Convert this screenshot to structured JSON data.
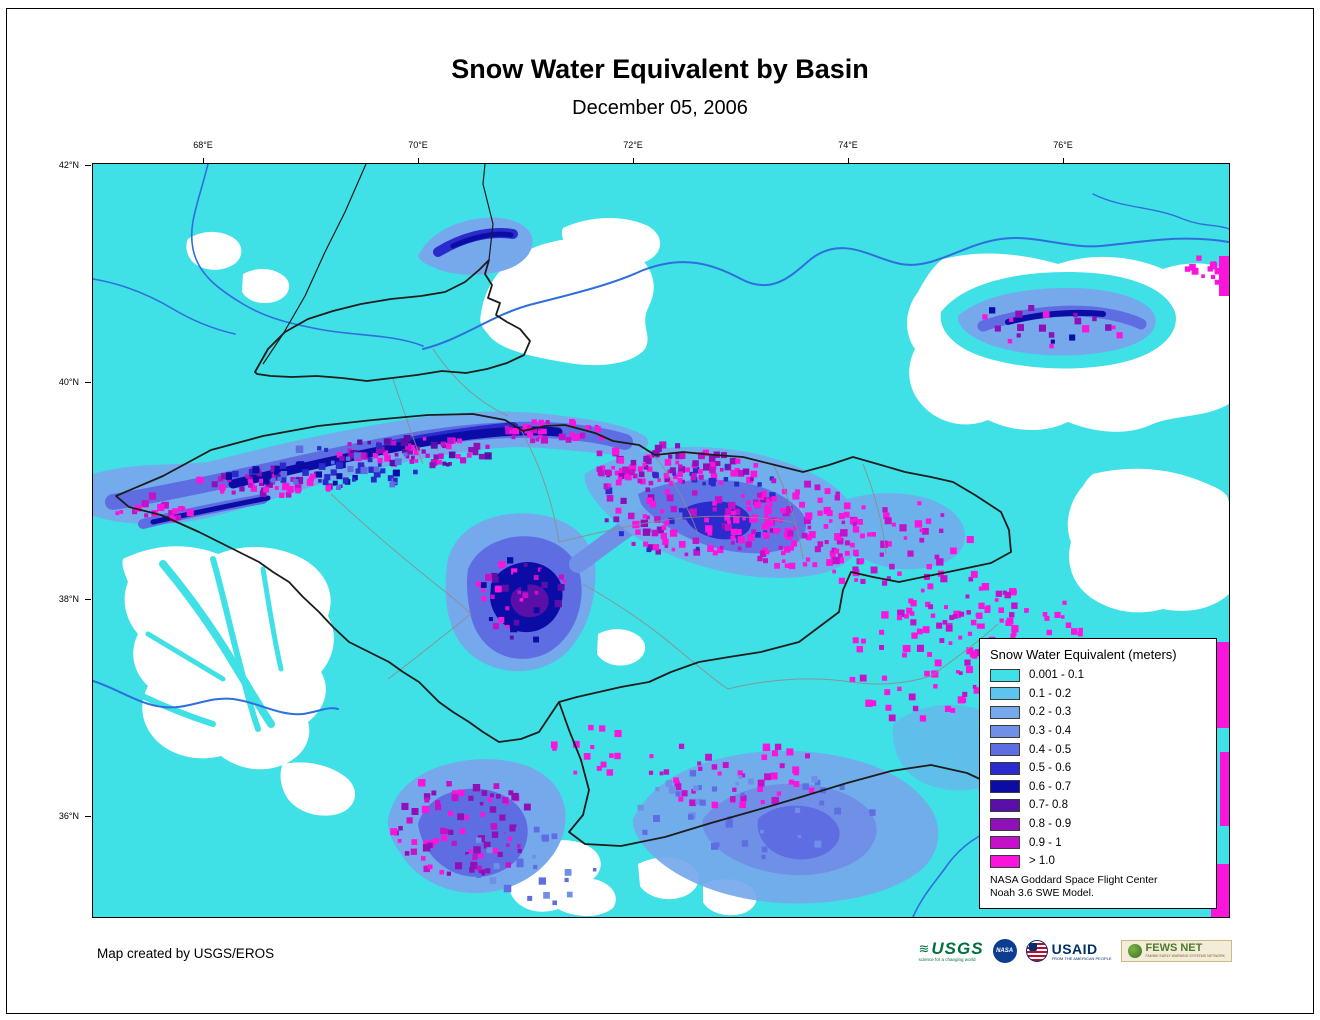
{
  "title": "Snow Water Equivalent by Basin",
  "subtitle": "December 05, 2006",
  "map": {
    "lon_labels": [
      "68°E",
      "70°E",
      "72°E",
      "74°E",
      "76°E"
    ],
    "lat_labels": [
      "42°N",
      "40°N",
      "38°N",
      "36°N"
    ],
    "background_color": "#3FE0E6",
    "nodata_color": "#FFFFFF",
    "river_color": "#2F6FDB",
    "basin_outline_color": "#1c1c1c",
    "subbasin_outline_color": "#8c8c8c"
  },
  "legend": {
    "title": "Snow Water Equivalent (meters)",
    "entries": [
      {
        "label": "0.001 - 0.1",
        "color": "#3FE0E6"
      },
      {
        "label": "0.1 - 0.2",
        "color": "#5CC4EE"
      },
      {
        "label": "0.2 - 0.3",
        "color": "#76A8EC"
      },
      {
        "label": "0.3 - 0.4",
        "color": "#7090E8"
      },
      {
        "label": "0.4 - 0.5",
        "color": "#5E6EE2"
      },
      {
        "label": "0.5 - 0.6",
        "color": "#2A2ACD"
      },
      {
        "label": "0.6 - 0.7",
        "color": "#0B0BA6"
      },
      {
        "label": "0.7- 0.8",
        "color": "#5A0FA8"
      },
      {
        "label": "0.8 - 0.9",
        "color": "#8F10B8"
      },
      {
        "label": "0.9 - 1",
        "color": "#C511C9"
      },
      {
        "label": "> 1.0",
        "color": "#FA14DC"
      }
    ],
    "source_line1": "NASA Goddard Space Flight Center",
    "source_line2": "Noah 3.6 SWE Model."
  },
  "footer": {
    "credit": "Map created by USGS/EROS"
  },
  "logos": {
    "usgs": {
      "text": "USGS",
      "tagline": "science for a changing world",
      "color": "#00703C"
    },
    "nasa": {
      "text": "NASA",
      "color": "#0B3D91"
    },
    "usaid": {
      "text": "USAID",
      "tagline": "FROM THE AMERICAN PEOPLE",
      "color": "#002F6C",
      "accent": "#BA0C2F"
    },
    "fewsnet": {
      "text": "FEWS NET",
      "tagline": "FAMINE EARLY WARNING SYSTEMS NETWORK",
      "color": "#4C7A2E"
    }
  }
}
